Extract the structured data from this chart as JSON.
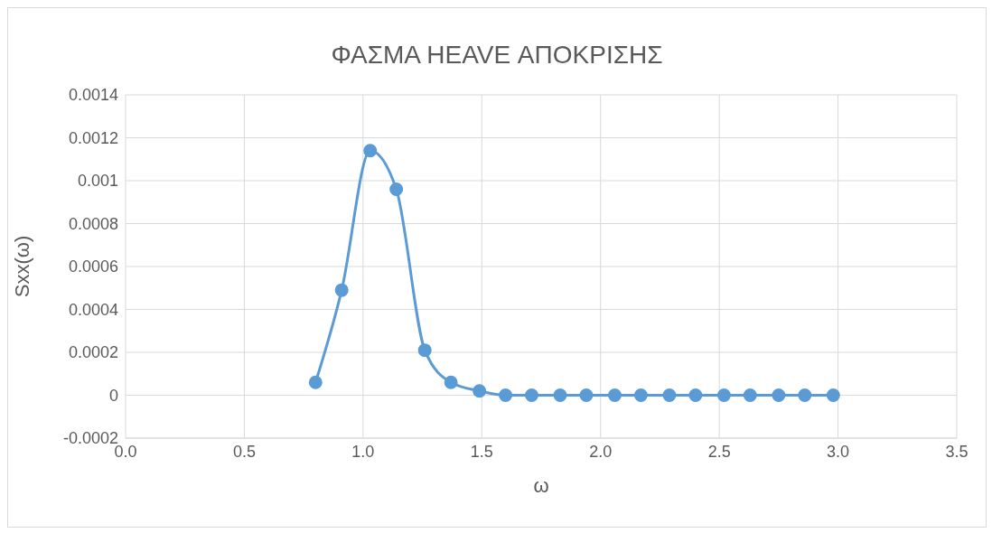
{
  "chart_data": {
    "type": "line",
    "title": "ΦΑΣΜΑ HEAVE ΑΠΟΚΡΙΣΗΣ",
    "xlabel": "ω",
    "ylabel": "Sxx(ω)",
    "x": [
      0.8,
      0.91,
      1.03,
      1.14,
      1.26,
      1.37,
      1.49,
      1.6,
      1.71,
      1.83,
      1.94,
      2.06,
      2.17,
      2.29,
      2.4,
      2.52,
      2.63,
      2.75,
      2.86,
      2.98
    ],
    "series": [
      {
        "color": "#5b9bd5",
        "values": [
          6e-05,
          0.00049,
          0.00114,
          0.00096,
          0.00021,
          6e-05,
          2e-05,
          0,
          0,
          0,
          0,
          0,
          0,
          0,
          0,
          0,
          0,
          0,
          0,
          0
        ]
      }
    ],
    "xlim": [
      0,
      3.5
    ],
    "xticks": [
      {
        "value": 0,
        "label": "0.0"
      },
      {
        "value": 0.5,
        "label": "0.5"
      },
      {
        "value": 1,
        "label": "1.0"
      },
      {
        "value": 1.5,
        "label": "1.5"
      },
      {
        "value": 2,
        "label": "2.0"
      },
      {
        "value": 2.5,
        "label": "2.5"
      },
      {
        "value": 3,
        "label": "3.0"
      },
      {
        "value": 3.5,
        "label": "3.5"
      }
    ],
    "ylim": [
      -0.0002,
      0.0014
    ],
    "yticks": [
      -0.0002,
      0,
      0.0002,
      0.0004,
      0.0006,
      0.0008,
      0.001,
      0.0012,
      0.0014
    ],
    "grid": true,
    "marker": "circle",
    "line_style": "solid"
  }
}
